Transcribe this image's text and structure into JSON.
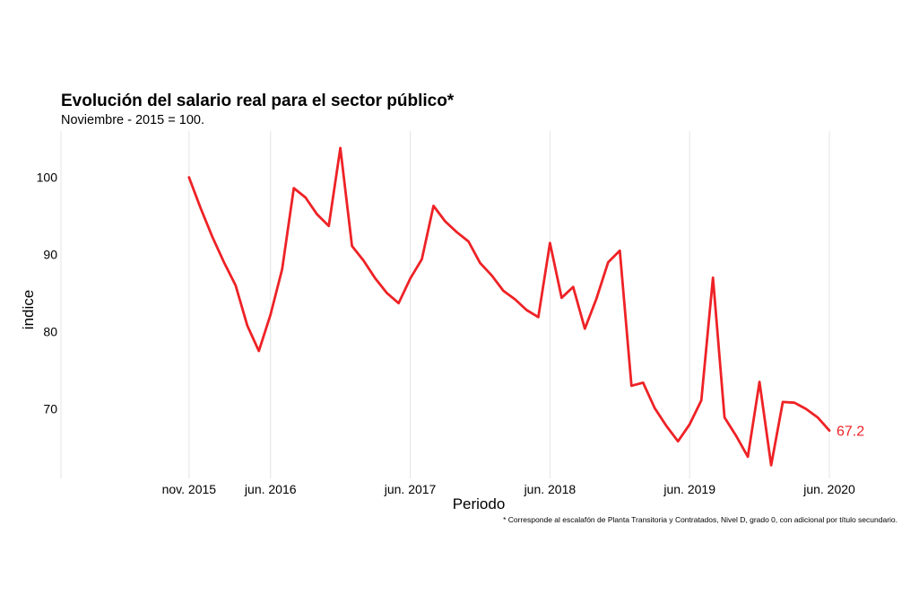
{
  "chart_data": {
    "type": "line",
    "title": "Evolución del salario real para el sector público*",
    "subtitle": "Noviembre - 2015 = 100.",
    "xlabel": "Periodo",
    "ylabel": "indice",
    "note": "* Corresponde al escalafón de Planta Transitoria y Contratados, Nivel D, grado 0, con adicional por título secundario.",
    "x_ticks": [
      "nov. 2015",
      "jun. 2016",
      "jun. 2017",
      "jun. 2018",
      "jun. 2019",
      "jun. 2020"
    ],
    "y_ticks": [
      "70",
      "80",
      "90",
      "100"
    ],
    "y_tick_values": [
      70,
      80,
      90,
      100
    ],
    "ylim": [
      61,
      106
    ],
    "x_range_months": [
      -11,
      56
    ],
    "x_tick_months": [
      0,
      7,
      19,
      31,
      43,
      55
    ],
    "series": [
      {
        "name": "Salario real",
        "color": "#ee2226",
        "months": [
          0,
          1,
          2,
          3,
          4,
          5,
          6,
          7,
          8,
          9,
          10,
          11,
          12,
          13,
          14,
          15,
          16,
          17,
          18,
          19,
          20,
          21,
          22,
          23,
          24,
          25,
          26,
          27,
          28,
          29,
          30,
          31,
          32,
          33,
          34,
          35,
          36,
          37,
          38,
          39,
          40,
          41,
          42,
          43,
          44,
          45,
          46,
          47,
          48,
          49,
          50,
          51,
          52,
          53,
          54,
          55
        ],
        "values": [
          100.0,
          96.0,
          92.3,
          89.0,
          86.0,
          80.8,
          77.5,
          82.2,
          88.1,
          98.6,
          97.4,
          95.2,
          93.7,
          103.8,
          91.1,
          89.2,
          86.9,
          85.0,
          83.7,
          86.9,
          89.4,
          96.3,
          94.3,
          92.9,
          91.7,
          88.9,
          87.3,
          85.3,
          84.2,
          82.8,
          81.9,
          91.5,
          84.4,
          85.8,
          80.4,
          84.3,
          89.0,
          90.5,
          73.0,
          73.4,
          70.1,
          67.8,
          65.8,
          68.0,
          71.1,
          87.0,
          68.9,
          66.5,
          63.8,
          73.5,
          62.7,
          70.9,
          70.8,
          70.0,
          68.9,
          67.2
        ]
      }
    ],
    "end_label": "67.2"
  }
}
